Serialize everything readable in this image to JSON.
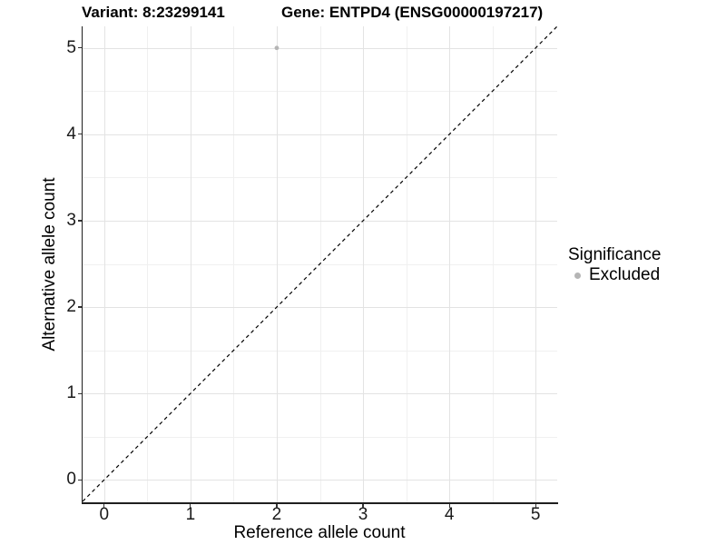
{
  "chart_data": {
    "type": "scatter",
    "title_left": "Variant: 8:23299141",
    "title_right": "Gene: ENTPD4 (ENSG00000197217)",
    "xlabel": "Reference allele count",
    "ylabel": "Alternative allele count",
    "xlim": [
      -0.25,
      5.25
    ],
    "ylim": [
      -0.26,
      5.25
    ],
    "x_ticks": [
      0,
      1,
      2,
      3,
      4,
      5
    ],
    "y_ticks": [
      0,
      1,
      2,
      3,
      4,
      5
    ],
    "x_minor_ticks": [
      0.5,
      1.5,
      2.5,
      3.5,
      4.5
    ],
    "y_minor_ticks": [
      0.5,
      1.5,
      2.5,
      3.5,
      4.5
    ],
    "grid": {
      "show": true,
      "major_color": "#e3e3e3",
      "minor_color": "#f0f0f0"
    },
    "axis_color": "#1f1f1f",
    "reference_line": {
      "slope": 1,
      "intercept": 0,
      "style": "dashed",
      "color": "#000000"
    },
    "series": [
      {
        "name": "Excluded",
        "color": "#b5b5b5",
        "marker": "circle",
        "points": [
          {
            "x": 2,
            "y": 5
          }
        ]
      }
    ],
    "legend": {
      "title": "Significance",
      "position": "right",
      "entries": [
        {
          "label": "Excluded",
          "color": "#b5b5b5",
          "marker": "circle"
        }
      ]
    }
  }
}
